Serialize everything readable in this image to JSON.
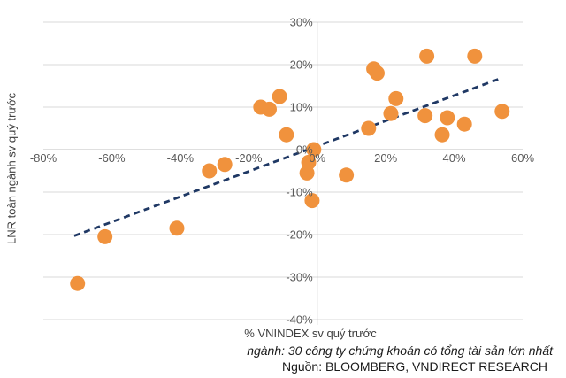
{
  "chart_data": {
    "type": "scatter",
    "title": "",
    "xlabel": "% VNINDEX sv quý trước",
    "ylabel": "LNR toàn ngành sv quý trước",
    "xlim": [
      -80,
      60
    ],
    "ylim": [
      -40,
      30
    ],
    "grid": "horizontal",
    "legend": "none",
    "x_ticks": [
      {
        "value": -80,
        "label": "-80%"
      },
      {
        "value": -60,
        "label": "-60%"
      },
      {
        "value": -40,
        "label": "-40%"
      },
      {
        "value": -20,
        "label": "-20%"
      },
      {
        "value": 0,
        "label": "0%"
      },
      {
        "value": 20,
        "label": "20%"
      },
      {
        "value": 40,
        "label": "40%"
      },
      {
        "value": 60,
        "label": "60%"
      }
    ],
    "y_ticks": [
      {
        "value": 30,
        "label": "30%"
      },
      {
        "value": 20,
        "label": "20%"
      },
      {
        "value": 10,
        "label": "10%"
      },
      {
        "value": 0,
        "label": "0%"
      },
      {
        "value": -10,
        "label": "-10%"
      },
      {
        "value": -20,
        "label": "-20%"
      },
      {
        "value": -30,
        "label": "-30%"
      },
      {
        "value": -40,
        "label": "-40%"
      }
    ],
    "series": [
      {
        "marker": "circle",
        "marker_color": "#F0923D",
        "points": [
          [
            -70,
            -31.5
          ],
          [
            -62,
            -20.5
          ],
          [
            -41,
            -18.5
          ],
          [
            -31.5,
            -5
          ],
          [
            -27,
            -3.5
          ],
          [
            -16.5,
            10
          ],
          [
            -14,
            9.5
          ],
          [
            -11,
            12.5
          ],
          [
            -9,
            3.5
          ],
          [
            -3,
            -5.5
          ],
          [
            -2.5,
            -3
          ],
          [
            -1.5,
            -12
          ],
          [
            -1,
            0
          ],
          [
            8.5,
            -6
          ],
          [
            15,
            5
          ],
          [
            16.5,
            19
          ],
          [
            17.5,
            18
          ],
          [
            21.5,
            8.5
          ],
          [
            23,
            12
          ],
          [
            31.5,
            8
          ],
          [
            32,
            22
          ],
          [
            36.5,
            3.5
          ],
          [
            38,
            7.5
          ],
          [
            43,
            6
          ],
          [
            46,
            22
          ],
          [
            54,
            9
          ]
        ]
      }
    ],
    "trendline": {
      "style": "dashed",
      "color": "#1F3864",
      "from": [
        -71,
        -20.3
      ],
      "to": [
        54,
        16.9
      ]
    }
  },
  "colors": {
    "gridline": "#D9D9D9",
    "axis_line": "#BFBFBF",
    "tick_label": "#595959",
    "marker": "#F0923D",
    "trend": "#1F3864"
  },
  "footer": {
    "note": "ngành: 30 công ty chứng khoán có tổng tài sản lớn nhất",
    "source": "Nguồn: BLOOMBERG, VNDIRECT RESEARCH"
  }
}
